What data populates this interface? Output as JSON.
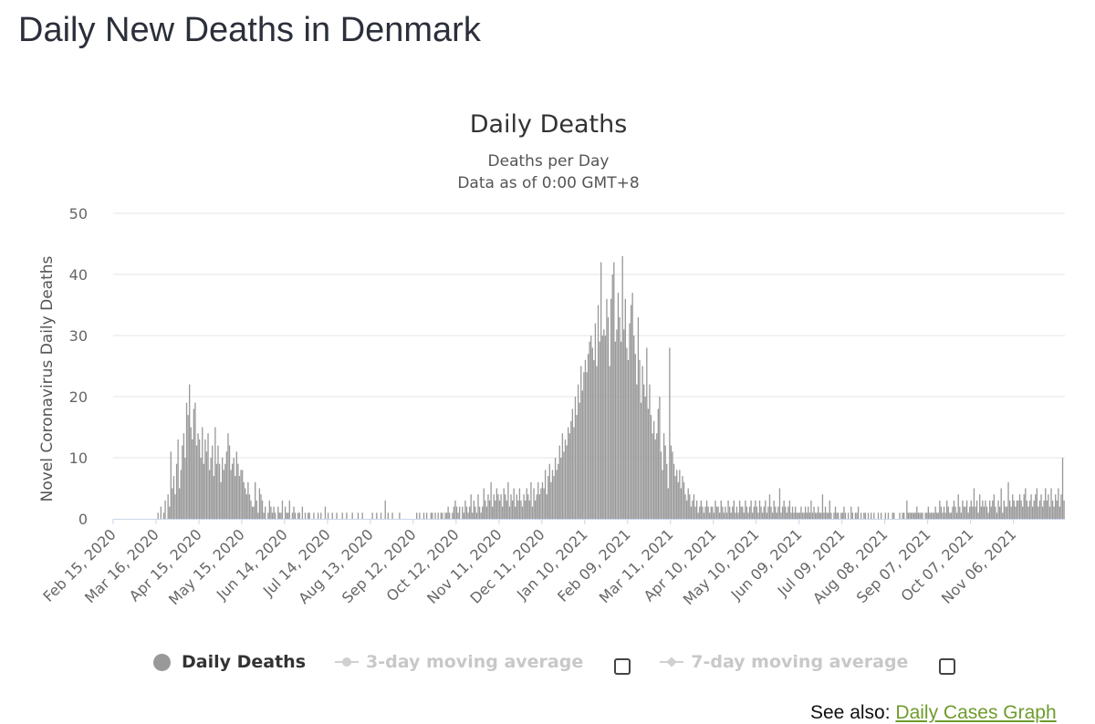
{
  "page_title": "Daily New Deaths in Denmark",
  "see_also": {
    "prefix": "See also: ",
    "link_text": "Daily Cases Graph"
  },
  "legend": {
    "items": [
      {
        "label": "Daily Deaths",
        "active": true
      },
      {
        "label": "3-day moving average",
        "active": false
      },
      {
        "label": "7-day moving average",
        "active": false
      }
    ]
  },
  "chart_data": {
    "type": "bar",
    "title": "Daily Deaths",
    "subtitle_lines": [
      "Deaths per Day",
      "Data as of 0:00 GMT+8"
    ],
    "xlabel": "",
    "ylabel": "Novel Coronavirus Daily Deaths",
    "ylim": [
      0,
      50
    ],
    "y_ticks": [
      0,
      10,
      20,
      30,
      40,
      50
    ],
    "grid": true,
    "x_tick_labels": [
      "Feb 15, 2020",
      "Mar 16, 2020",
      "Apr 15, 2020",
      "May 15, 2020",
      "Jun 14, 2020",
      "Jul 14, 2020",
      "Aug 13, 2020",
      "Sep 12, 2020",
      "Oct 12, 2020",
      "Nov 11, 2020",
      "Dec 11, 2020",
      "Jan 10, 2021",
      "Feb 09, 2021",
      "Mar 11, 2021",
      "Apr 10, 2021",
      "May 10, 2021",
      "Jun 09, 2021",
      "Jul 09, 2021",
      "Aug 08, 2021",
      "Sep 07, 2021",
      "Oct 07, 2021",
      "Nov 06, 2021"
    ],
    "x_tick_every_days": 30,
    "start_date": "Feb 15, 2020",
    "bar_color": "#999999",
    "series": [
      {
        "name": "Daily Deaths",
        "segments": [
          {
            "days": 30,
            "values": [
              0,
              0,
              0,
              0,
              0,
              0,
              0,
              0,
              0,
              0,
              0,
              0,
              0,
              0,
              0,
              0,
              0,
              0,
              0,
              0,
              0,
              0,
              0,
              0,
              0,
              0,
              0,
              0,
              0,
              0
            ]
          },
          {
            "days": 30,
            "values": [
              0,
              1,
              0,
              2,
              0,
              1,
              3,
              0,
              4,
              2,
              11,
              5,
              7,
              4,
              9,
              13,
              5,
              8,
              12,
              14,
              10,
              19,
              17,
              22,
              15,
              13,
              18,
              19,
              12,
              14
            ]
          },
          {
            "days": 30,
            "values": [
              13,
              10,
              15,
              9,
              13,
              11,
              14,
              8,
              10,
              12,
              7,
              15,
              9,
              12,
              9,
              6,
              10,
              8,
              9,
              11,
              14,
              12,
              8,
              9,
              10,
              7,
              11,
              9,
              7,
              8
            ]
          },
          {
            "days": 30,
            "values": [
              8,
              6,
              5,
              4,
              6,
              4,
              3,
              2,
              2,
              6,
              3,
              1,
              5,
              4,
              3,
              1,
              2,
              0,
              1,
              3,
              2,
              1,
              2,
              1,
              0,
              2,
              1,
              1,
              3,
              0
            ]
          },
          {
            "days": 30,
            "values": [
              2,
              1,
              1,
              3,
              0,
              1,
              2,
              1,
              0,
              1,
              1,
              0,
              2,
              0,
              1,
              0,
              1,
              1,
              0,
              0,
              1,
              0,
              0,
              1,
              0,
              1,
              0,
              0,
              2,
              0
            ]
          },
          {
            "days": 30,
            "values": [
              1,
              0,
              0,
              1,
              0,
              0,
              1,
              0,
              0,
              0,
              1,
              0,
              0,
              1,
              0,
              0,
              0,
              1,
              0,
              0,
              0,
              1,
              0,
              0,
              1,
              0,
              0,
              0,
              0,
              0
            ]
          },
          {
            "days": 30,
            "values": [
              0,
              1,
              0,
              0,
              1,
              0,
              0,
              1,
              0,
              0,
              3,
              0,
              1,
              0,
              0,
              1,
              0,
              0,
              0,
              0,
              1,
              0,
              0,
              0,
              0,
              0,
              0,
              0,
              0,
              0
            ]
          },
          {
            "days": 30,
            "values": [
              0,
              0,
              1,
              0,
              1,
              0,
              0,
              1,
              0,
              1,
              0,
              0,
              1,
              1,
              0,
              1,
              0,
              1,
              0,
              1,
              1,
              0,
              1,
              1,
              2,
              1,
              0,
              1,
              2,
              3
            ]
          },
          {
            "days": 30,
            "values": [
              2,
              1,
              2,
              0,
              2,
              1,
              3,
              2,
              1,
              2,
              4,
              1,
              3,
              2,
              1,
              4,
              2,
              1,
              2,
              5,
              3,
              2,
              4,
              3,
              6,
              2,
              4,
              3,
              5,
              4
            ]
          },
          {
            "days": 30,
            "values": [
              3,
              4,
              2,
              5,
              4,
              3,
              6,
              2,
              4,
              3,
              5,
              2,
              4,
              3,
              5,
              3,
              2,
              4,
              3,
              5,
              4,
              3,
              6,
              2,
              5,
              3,
              4,
              6,
              4,
              5
            ]
          },
          {
            "days": 30,
            "values": [
              6,
              5,
              8,
              4,
              7,
              9,
              6,
              8,
              7,
              10,
              8,
              9,
              12,
              10,
              14,
              11,
              13,
              12,
              15,
              14,
              16,
              18,
              15,
              20,
              17,
              22,
              19,
              25,
              21,
              24
            ]
          },
          {
            "days": 30,
            "values": [
              26,
              24,
              27,
              29,
              30,
              28,
              26,
              32,
              25,
              35,
              29,
              42,
              30,
              31,
              30,
              36,
              33,
              25,
              36,
              40,
              42,
              29,
              31,
              37,
              33,
              29,
              43,
              31,
              36,
              28
            ]
          },
          {
            "days": 30,
            "values": [
              26,
              32,
              35,
              37,
              30,
              27,
              22,
              33,
              26,
              19,
              25,
              22,
              20,
              28,
              18,
              22,
              17,
              14,
              16,
              13,
              14,
              18,
              20,
              11,
              8,
              14,
              12,
              9,
              5,
              28
            ]
          },
          {
            "days": 30,
            "values": [
              12,
              11,
              9,
              7,
              8,
              6,
              8,
              5,
              7,
              6,
              4,
              3,
              5,
              4,
              2,
              3,
              4,
              2,
              3,
              1,
              2,
              3,
              2,
              1,
              2,
              3,
              2,
              1,
              2,
              2
            ]
          },
          {
            "days": 30,
            "values": [
              1,
              3,
              2,
              2,
              1,
              3,
              2,
              1,
              2,
              1,
              3,
              2,
              1,
              2,
              3,
              1,
              2,
              1,
              3,
              2,
              2,
              1,
              3,
              2,
              1,
              2,
              3,
              1,
              2,
              3
            ]
          },
          {
            "days": 30,
            "values": [
              2,
              1,
              3,
              2,
              1,
              2,
              3,
              1,
              2,
              4,
              2,
              1,
              3,
              2,
              1,
              2,
              5,
              1,
              2,
              3,
              2,
              1,
              2,
              3,
              1,
              2,
              1,
              2,
              1,
              1
            ]
          },
          {
            "days": 30,
            "values": [
              1,
              2,
              1,
              1,
              2,
              1,
              2,
              1,
              3,
              1,
              2,
              1,
              1,
              2,
              1,
              1,
              4,
              1,
              2,
              1,
              1,
              3,
              1,
              0,
              1,
              2,
              1,
              1,
              0,
              1
            ]
          },
          {
            "days": 30,
            "values": [
              1,
              2,
              1,
              0,
              1,
              0,
              2,
              1,
              0,
              1,
              1,
              2,
              0,
              1,
              0,
              1,
              1,
              0,
              1,
              0,
              1,
              0,
              1,
              0,
              0,
              1,
              0,
              1,
              0,
              0
            ]
          },
          {
            "days": 30,
            "values": [
              1,
              0,
              1,
              0,
              0,
              1,
              1,
              0,
              0,
              0,
              1,
              0,
              1,
              1,
              0,
              3,
              1,
              1,
              1,
              1,
              1,
              1,
              2,
              1,
              1,
              1,
              1,
              0,
              1,
              1
            ]
          },
          {
            "days": 30,
            "values": [
              2,
              1,
              1,
              1,
              1,
              2,
              1,
              1,
              3,
              2,
              1,
              2,
              1,
              3,
              2,
              1,
              1,
              2,
              3,
              2,
              1,
              4,
              2,
              1,
              3,
              2,
              2,
              3,
              1,
              2
            ]
          },
          {
            "days": 30,
            "values": [
              3,
              2,
              5,
              2,
              3,
              1,
              4,
              2,
              3,
              2,
              3,
              2,
              1,
              3,
              2,
              3,
              4,
              2,
              1,
              3,
              2,
              5,
              1,
              3,
              2,
              2,
              6,
              3,
              2,
              4
            ]
          },
          {
            "days": 30,
            "values": [
              3,
              2,
              3,
              3,
              4,
              3,
              2,
              4,
              5,
              3,
              2,
              3,
              4,
              2,
              3,
              4,
              5,
              2,
              3,
              4,
              2,
              3,
              5,
              3,
              4,
              2,
              5,
              3,
              2,
              4
            ]
          },
          {
            "days": 6,
            "values": [
              3,
              5,
              2,
              4,
              10,
              3
            ]
          }
        ]
      }
    ]
  }
}
